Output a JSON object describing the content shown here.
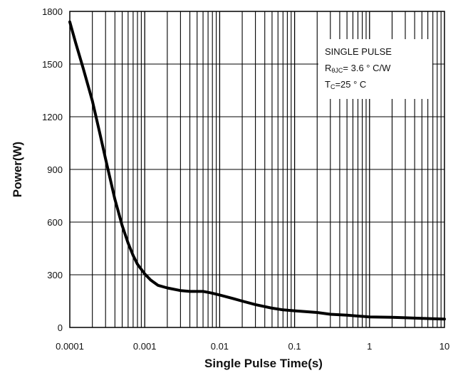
{
  "chart_data": {
    "type": "line",
    "xscale": "log",
    "xlim": [
      0.0001,
      10
    ],
    "ylim": [
      0,
      1800
    ],
    "grid": true,
    "xlabel": "Single Pulse Time(s)",
    "ylabel": "Power(W)",
    "x_ticks": [
      "0.0001",
      "0.001",
      "0.01",
      "0.1",
      "1",
      "10"
    ],
    "y_ticks": [
      "0",
      "300",
      "600",
      "900",
      "1200",
      "1500",
      "1800"
    ],
    "annotation": {
      "line1": "SINGLE PULSE",
      "line2_main": "R",
      "line2_sub": "θJC",
      "line2_rest": "= 3.6 ° C/W",
      "line3_main": "T",
      "line3_sub": "C",
      "line3_rest": "=25 ° C",
      "placement": "top-right"
    },
    "series": [
      {
        "x": [
          0.0001,
          0.00012,
          0.00015,
          0.0002,
          0.00025,
          0.0003,
          0.0004,
          0.0005,
          0.0006,
          0.0007,
          0.0008,
          0.001,
          0.0012,
          0.0015,
          0.002,
          0.003,
          0.004,
          0.005,
          0.006,
          0.007,
          0.008,
          0.01,
          0.015,
          0.02,
          0.03,
          0.05,
          0.07,
          0.1,
          0.2,
          0.3,
          0.5,
          0.7,
          1,
          2,
          3,
          5,
          7,
          10
        ],
        "values": [
          1740,
          1620,
          1480,
          1290,
          1110,
          960,
          730,
          580,
          480,
          410,
          360,
          305,
          270,
          240,
          225,
          210,
          205,
          205,
          205,
          200,
          195,
          185,
          165,
          150,
          130,
          110,
          100,
          95,
          85,
          75,
          70,
          65,
          60,
          58,
          55,
          52,
          50,
          48
        ]
      }
    ]
  }
}
